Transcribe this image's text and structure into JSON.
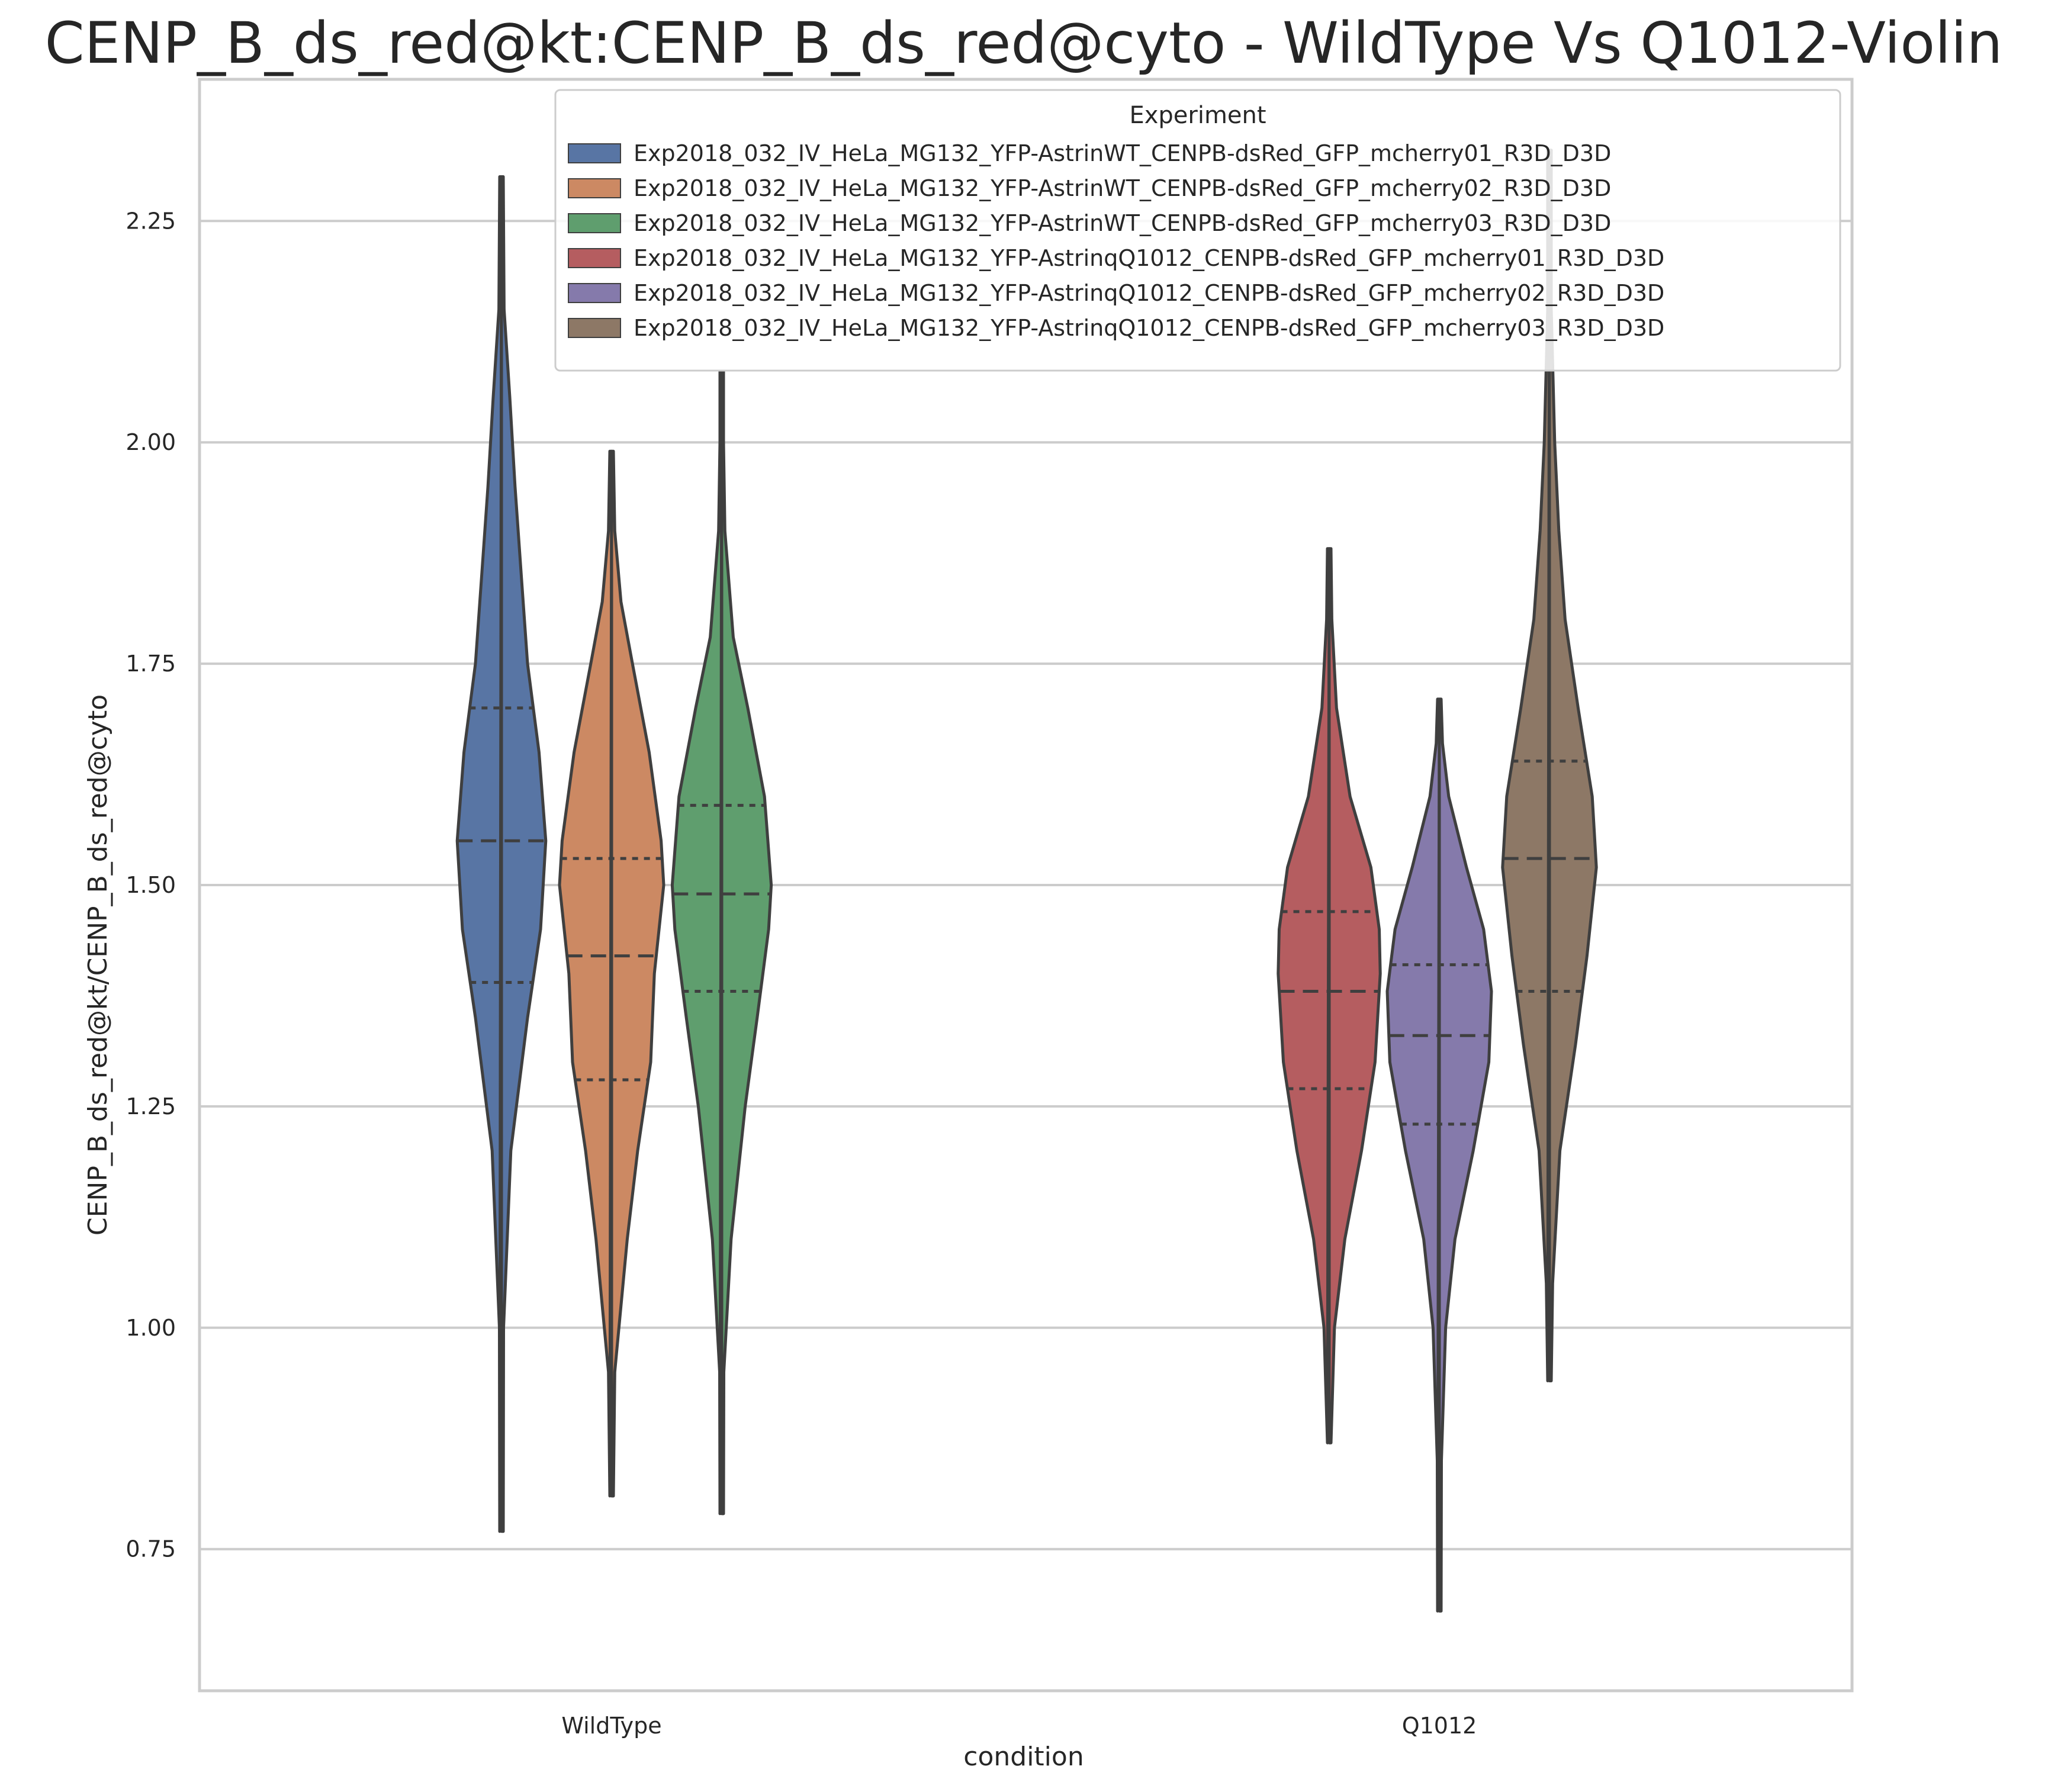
{
  "chart_data": {
    "type": "violin",
    "title": "CENP_B_ds_red@kt:CENP_B_ds_red@cyto - WildType Vs Q1012-Violin",
    "xlabel": "condition",
    "ylabel": "CENP_B_ds_red@kt/CENP_B_ds_red@cyto",
    "categories": [
      "WildType",
      "Q1012"
    ],
    "ylim": [
      0.59,
      2.41
    ],
    "yticks": [
      0.75,
      1.0,
      1.25,
      1.5,
      1.75,
      2.0,
      2.25
    ],
    "ytick_labels": [
      "0.75",
      "1.00",
      "1.25",
      "1.50",
      "1.75",
      "2.00",
      "2.25"
    ],
    "grid": true,
    "inner": "quartile",
    "legend": {
      "title": "Experiment",
      "position": "upper right"
    },
    "series": [
      {
        "name": "Exp2018_032_IV_HeLa_MG132_YFP-AstrinWT_CENPB-dsRed_GFP_mcherry01_R3D_D3D",
        "category": "WildType",
        "color": "#5875a4",
        "min": 0.77,
        "q1": 1.39,
        "median": 1.55,
        "q3": 1.7,
        "max": 2.3,
        "density": [
          [
            0.77,
            0.01
          ],
          [
            1.0,
            0.04
          ],
          [
            1.2,
            0.18
          ],
          [
            1.35,
            0.5
          ],
          [
            1.45,
            0.75
          ],
          [
            1.55,
            0.85
          ],
          [
            1.65,
            0.72
          ],
          [
            1.75,
            0.5
          ],
          [
            1.85,
            0.38
          ],
          [
            1.95,
            0.26
          ],
          [
            2.05,
            0.16
          ],
          [
            2.15,
            0.05
          ],
          [
            2.3,
            0.01
          ]
        ]
      },
      {
        "name": "Exp2018_032_IV_HeLa_MG132_YFP-AstrinWT_CENPB-dsRed_GFP_mcherry02_R3D_D3D",
        "category": "WildType",
        "color": "#cc8963",
        "min": 0.81,
        "q1": 1.28,
        "median": 1.42,
        "q3": 1.53,
        "max": 1.99,
        "density": [
          [
            0.81,
            0.01
          ],
          [
            0.95,
            0.06
          ],
          [
            1.1,
            0.3
          ],
          [
            1.2,
            0.5
          ],
          [
            1.3,
            0.75
          ],
          [
            1.4,
            0.82
          ],
          [
            1.5,
            1.0
          ],
          [
            1.55,
            0.95
          ],
          [
            1.65,
            0.72
          ],
          [
            1.75,
            0.4
          ],
          [
            1.82,
            0.18
          ],
          [
            1.9,
            0.06
          ],
          [
            1.99,
            0.01
          ]
        ]
      },
      {
        "name": "Exp2018_032_IV_HeLa_MG132_YFP-AstrinWT_CENPB-dsRed_GFP_mcherry03_R3D_D3D",
        "category": "WildType",
        "color": "#5f9e6e",
        "min": 0.79,
        "q1": 1.38,
        "median": 1.49,
        "q3": 1.59,
        "max": 2.08,
        "density": [
          [
            0.79,
            0.01
          ],
          [
            0.95,
            0.04
          ],
          [
            1.1,
            0.18
          ],
          [
            1.25,
            0.45
          ],
          [
            1.35,
            0.68
          ],
          [
            1.45,
            0.9
          ],
          [
            1.5,
            0.95
          ],
          [
            1.6,
            0.82
          ],
          [
            1.7,
            0.5
          ],
          [
            1.78,
            0.22
          ],
          [
            1.9,
            0.06
          ],
          [
            2.0,
            0.02
          ],
          [
            2.08,
            0.01
          ]
        ]
      },
      {
        "name": "Exp2018_032_IV_HeLa_MG132_YFP-AstrinqQ1012_CENPB-dsRed_GFP_mcherry01_R3D_D3D",
        "category": "Q1012",
        "color": "#b55d60",
        "min": 0.87,
        "q1": 1.27,
        "median": 1.38,
        "q3": 1.47,
        "max": 1.88,
        "density": [
          [
            0.87,
            0.01
          ],
          [
            1.0,
            0.1
          ],
          [
            1.1,
            0.3
          ],
          [
            1.2,
            0.62
          ],
          [
            1.3,
            0.88
          ],
          [
            1.4,
            0.98
          ],
          [
            1.45,
            0.96
          ],
          [
            1.52,
            0.8
          ],
          [
            1.6,
            0.4
          ],
          [
            1.7,
            0.14
          ],
          [
            1.8,
            0.05
          ],
          [
            1.88,
            0.01
          ]
        ]
      },
      {
        "name": "Exp2018_032_IV_HeLa_MG132_YFP-AstrinqQ1012_CENPB-dsRed_GFP_mcherry02_R3D_D3D",
        "category": "Q1012",
        "color": "#857aab",
        "min": 0.68,
        "q1": 1.23,
        "median": 1.33,
        "q3": 1.41,
        "max": 1.71,
        "density": [
          [
            0.68,
            0.01
          ],
          [
            0.85,
            0.04
          ],
          [
            1.0,
            0.12
          ],
          [
            1.1,
            0.3
          ],
          [
            1.2,
            0.65
          ],
          [
            1.3,
            0.95
          ],
          [
            1.38,
            1.0
          ],
          [
            1.45,
            0.85
          ],
          [
            1.52,
            0.52
          ],
          [
            1.6,
            0.18
          ],
          [
            1.66,
            0.06
          ],
          [
            1.71,
            0.01
          ]
        ]
      },
      {
        "name": "Exp2018_032_IV_HeLa_MG132_YFP-AstrinqQ1012_CENPB-dsRed_GFP_mcherry03_R3D_D3D",
        "category": "Q1012",
        "color": "#8d7866",
        "min": 0.94,
        "q1": 1.38,
        "median": 1.53,
        "q3": 1.64,
        "max": 2.33,
        "density": [
          [
            0.94,
            0.01
          ],
          [
            1.05,
            0.06
          ],
          [
            1.2,
            0.2
          ],
          [
            1.32,
            0.5
          ],
          [
            1.42,
            0.72
          ],
          [
            1.52,
            0.9
          ],
          [
            1.6,
            0.82
          ],
          [
            1.7,
            0.55
          ],
          [
            1.8,
            0.3
          ],
          [
            1.9,
            0.18
          ],
          [
            2.0,
            0.1
          ],
          [
            2.15,
            0.03
          ],
          [
            2.33,
            0.01
          ]
        ]
      }
    ]
  }
}
